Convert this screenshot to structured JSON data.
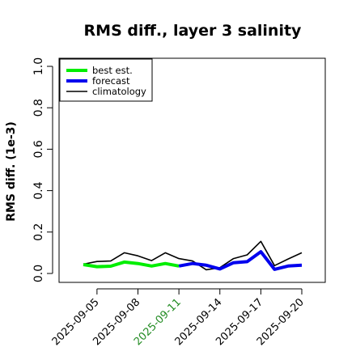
{
  "chart_data": {
    "type": "line",
    "title": "RMS diff., layer 3 salinity",
    "xlabel": "",
    "ylabel": "RMS diff. (1e-3)",
    "ylim": [
      0,
      1
    ],
    "y_ticks": [
      "0.0",
      "0.2",
      "0.4",
      "0.6",
      "0.8",
      "1.0"
    ],
    "x_tick_labels": [
      "2025-09-05",
      "2025-09-08",
      "2025-09-11",
      "2025-09-14",
      "2025-09-17",
      "2025-09-20"
    ],
    "highlighted_tick": "2025-09-11",
    "highlight_color": "#228B22",
    "x_dates": [
      "2025-09-04",
      "2025-09-05",
      "2025-09-06",
      "2025-09-07",
      "2025-09-08",
      "2025-09-09",
      "2025-09-10",
      "2025-09-11",
      "2025-09-12",
      "2025-09-13",
      "2025-09-14",
      "2025-09-15",
      "2025-09-16",
      "2025-09-17",
      "2025-09-18",
      "2025-09-19",
      "2025-09-20"
    ],
    "grid": false,
    "legend_position": "top-left",
    "series": [
      {
        "name": "best est.",
        "color": "#00ee00",
        "x": [
          "2025-09-04",
          "2025-09-05",
          "2025-09-06",
          "2025-09-07",
          "2025-09-08",
          "2025-09-09",
          "2025-09-10",
          "2025-09-11"
        ],
        "values": [
          0.043,
          0.033,
          0.035,
          0.055,
          0.048,
          0.036,
          0.048,
          0.036
        ]
      },
      {
        "name": "forecast",
        "color": "#0000ee",
        "x": [
          "2025-09-11",
          "2025-09-12",
          "2025-09-13",
          "2025-09-14",
          "2025-09-15",
          "2025-09-16",
          "2025-09-17",
          "2025-09-18",
          "2025-09-19",
          "2025-09-20"
        ],
        "values": [
          0.036,
          0.048,
          0.04,
          0.022,
          0.052,
          0.057,
          0.105,
          0.02,
          0.036,
          0.04
        ]
      },
      {
        "name": "climatology",
        "color": "#000000",
        "x": [
          "2025-09-04",
          "2025-09-05",
          "2025-09-06",
          "2025-09-07",
          "2025-09-08",
          "2025-09-09",
          "2025-09-10",
          "2025-09-11",
          "2025-09-12",
          "2025-09-13",
          "2025-09-14",
          "2025-09-15",
          "2025-09-16",
          "2025-09-17",
          "2025-09-18",
          "2025-09-19",
          "2025-09-20"
        ],
        "values": [
          0.045,
          0.058,
          0.06,
          0.1,
          0.085,
          0.062,
          0.1,
          0.072,
          0.06,
          0.018,
          0.028,
          0.072,
          0.09,
          0.155,
          0.038,
          0.07,
          0.1
        ]
      }
    ]
  }
}
